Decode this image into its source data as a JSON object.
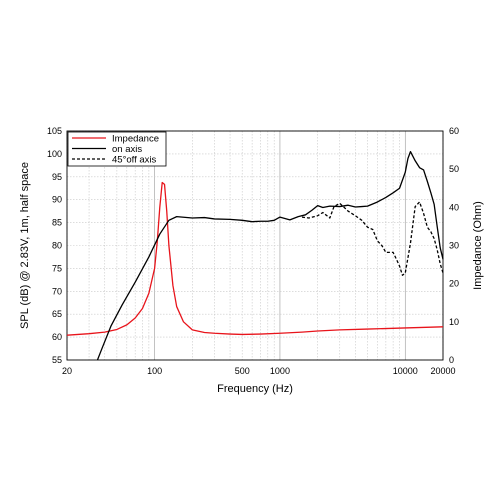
{
  "chart_data": {
    "type": "line",
    "xlabel": "Frequency (Hz)",
    "ylabel_left": "SPL (dB) @ 2.83V, 1m, half space",
    "ylabel_right": "Impedance (Ohm)",
    "x_scale": "log",
    "xlim": [
      20,
      20000
    ],
    "ylim_left": [
      55,
      105
    ],
    "ylim_right": [
      0,
      60
    ],
    "x_ticks": [
      {
        "value": 20,
        "label": "20"
      },
      {
        "value": 100,
        "label": "100"
      },
      {
        "value": 500,
        "label": "500"
      },
      {
        "value": 1000,
        "label": "1000"
      },
      {
        "value": 10000,
        "label": "10000"
      },
      {
        "value": 20000,
        "label": "20000"
      }
    ],
    "y_ticks_left": [
      "55",
      "60",
      "65",
      "70",
      "75",
      "80",
      "85",
      "90",
      "95",
      "100",
      "105"
    ],
    "y_ticks_right": [
      "0",
      "10",
      "20",
      "30",
      "40",
      "50",
      "60"
    ],
    "grid": true,
    "legend_position": "top-left",
    "series": [
      {
        "name": "Impedance",
        "axis": "right",
        "color": "#e8141b",
        "style": "solid",
        "x": [
          20,
          30,
          40,
          50,
          60,
          70,
          80,
          90,
          100,
          105,
          110,
          115,
          120,
          125,
          130,
          140,
          150,
          170,
          200,
          250,
          300,
          400,
          500,
          700,
          1000,
          1500,
          2000,
          3000,
          5000,
          10000,
          20000
        ],
        "y": [
          6.5,
          6.9,
          7.3,
          8.0,
          9.2,
          11.0,
          13.5,
          17.5,
          24.0,
          31.0,
          40.0,
          46.5,
          46.0,
          39.0,
          30.0,
          19.5,
          14.0,
          10.0,
          7.9,
          7.2,
          7.0,
          6.8,
          6.7,
          6.8,
          7.0,
          7.3,
          7.6,
          7.9,
          8.1,
          8.4,
          8.7
        ]
      },
      {
        "name": "on axis",
        "axis": "left",
        "color": "#000000",
        "style": "solid",
        "x": [
          35,
          38,
          45,
          55,
          70,
          90,
          110,
          130,
          150,
          200,
          250,
          300,
          400,
          500,
          600,
          700,
          800,
          900,
          1000,
          1200,
          1400,
          1600,
          1800,
          2000,
          2200,
          2500,
          3000,
          3500,
          4000,
          4500,
          5000,
          6000,
          7000,
          8000,
          9000,
          10000,
          10500,
          11000,
          12000,
          13000,
          14000,
          15000,
          16000,
          17000,
          18000,
          19000,
          20000
        ],
        "y": [
          55.0,
          57.5,
          62.5,
          67.0,
          72.0,
          77.5,
          82.5,
          85.5,
          86.3,
          86.0,
          86.1,
          85.8,
          85.7,
          85.5,
          85.2,
          85.3,
          85.3,
          85.5,
          86.2,
          85.6,
          86.3,
          86.7,
          87.7,
          88.7,
          88.3,
          88.6,
          88.5,
          88.8,
          88.4,
          88.5,
          88.6,
          89.5,
          90.5,
          91.5,
          92.5,
          96.0,
          99.0,
          100.5,
          98.5,
          97.0,
          96.5,
          94.0,
          91.5,
          89.0,
          84.0,
          79.5,
          77.0
        ]
      },
      {
        "name": "45°off axis",
        "axis": "left",
        "color": "#000000",
        "style": "dashed",
        "x": [
          1500,
          1700,
          2000,
          2200,
          2500,
          2700,
          3000,
          3200,
          3500,
          4000,
          4500,
          5000,
          5500,
          6000,
          6500,
          7000,
          8000,
          8500,
          9000,
          9500,
          10000,
          11000,
          12000,
          13000,
          14000,
          15000,
          16000,
          17000,
          18000,
          19000,
          20000
        ],
        "y": [
          86.2,
          86.0,
          86.5,
          87.2,
          86.0,
          88.5,
          89.2,
          88.5,
          87.5,
          86.5,
          85.5,
          84.0,
          83.5,
          81.0,
          80.0,
          78.5,
          78.5,
          77.0,
          75.5,
          73.5,
          74.0,
          80.5,
          88.5,
          89.5,
          87.0,
          84.0,
          83.0,
          81.5,
          79.0,
          76.0,
          74.0
        ]
      }
    ]
  }
}
